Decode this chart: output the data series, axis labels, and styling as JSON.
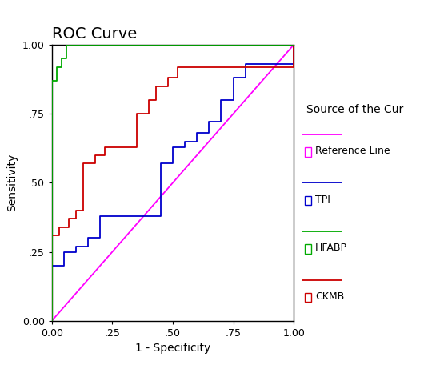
{
  "title": "ROC Curve",
  "xlabel": "1 - Specificity",
  "ylabel": "Sensitivity",
  "xlim": [
    0.0,
    1.0
  ],
  "ylim": [
    0.0,
    1.0
  ],
  "xticks": [
    0.0,
    0.25,
    0.5,
    0.75,
    1.0
  ],
  "yticks": [
    0.0,
    0.25,
    0.5,
    0.75,
    1.0
  ],
  "xtick_labels": [
    "0.00",
    ".25",
    ".50",
    ".75",
    "1.00"
  ],
  "ytick_labels": [
    "0.00",
    ".25",
    ".50",
    ".75",
    "1.00"
  ],
  "reference_line": {
    "color": "#ff00ff",
    "label": "Reference Line"
  },
  "tpi": {
    "color": "#0000cc",
    "label": "TPI",
    "x": [
      0.0,
      0.0,
      0.05,
      0.05,
      0.1,
      0.1,
      0.15,
      0.15,
      0.2,
      0.2,
      0.45,
      0.45,
      0.5,
      0.5,
      0.55,
      0.55,
      0.6,
      0.6,
      0.65,
      0.65,
      0.7,
      0.7,
      0.75,
      0.75,
      0.8,
      0.8,
      1.0
    ],
    "y": [
      0.0,
      0.2,
      0.2,
      0.25,
      0.25,
      0.27,
      0.27,
      0.3,
      0.3,
      0.38,
      0.38,
      0.57,
      0.57,
      0.63,
      0.63,
      0.65,
      0.65,
      0.68,
      0.68,
      0.72,
      0.72,
      0.8,
      0.8,
      0.88,
      0.88,
      0.93,
      1.0
    ]
  },
  "hfabp": {
    "color": "#00aa00",
    "label": "HFABP",
    "x": [
      0.0,
      0.0,
      0.02,
      0.02,
      0.04,
      0.04,
      0.06,
      0.06,
      0.55,
      0.55,
      1.0
    ],
    "y": [
      0.0,
      0.87,
      0.87,
      0.92,
      0.92,
      0.95,
      0.95,
      1.0,
      1.0,
      1.0,
      1.0
    ]
  },
  "ckmb": {
    "color": "#cc0000",
    "label": "CKMB",
    "x": [
      0.0,
      0.0,
      0.03,
      0.03,
      0.07,
      0.07,
      0.1,
      0.1,
      0.13,
      0.13,
      0.18,
      0.18,
      0.22,
      0.22,
      0.35,
      0.35,
      0.4,
      0.4,
      0.43,
      0.43,
      0.48,
      0.48,
      0.52,
      0.52,
      0.75,
      0.75,
      1.0
    ],
    "y": [
      0.0,
      0.31,
      0.31,
      0.34,
      0.34,
      0.37,
      0.37,
      0.4,
      0.4,
      0.57,
      0.57,
      0.6,
      0.6,
      0.63,
      0.63,
      0.75,
      0.75,
      0.8,
      0.8,
      0.85,
      0.85,
      0.88,
      0.88,
      0.92,
      0.92,
      0.92,
      1.0
    ]
  },
  "legend_title": "Source of the Cur",
  "title_fontsize": 14,
  "axis_label_fontsize": 10,
  "tick_fontsize": 9,
  "legend_fontsize": 9,
  "ref_color": "#ff00ff",
  "tpi_color": "#0000cc",
  "hfabp_color": "#00aa00",
  "ckmb_color": "#cc0000"
}
